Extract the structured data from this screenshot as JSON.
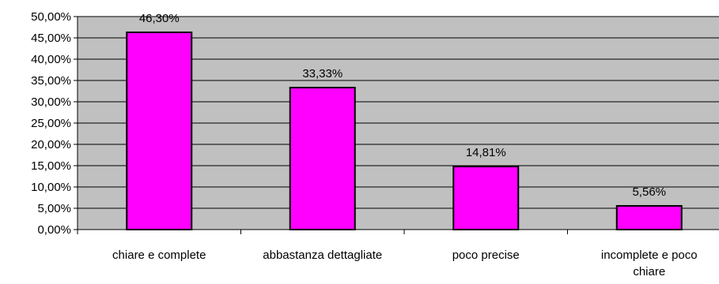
{
  "chart_data": {
    "type": "bar",
    "title": "",
    "xlabel": "",
    "ylabel": "",
    "categories": [
      [
        "chiare e complete"
      ],
      [
        "abbastanza dettagliate"
      ],
      [
        "poco precise"
      ],
      [
        "incomplete e poco",
        "chiare"
      ]
    ],
    "values": [
      46.3,
      33.33,
      14.81,
      5.56
    ],
    "data_labels": [
      "46,30%",
      "33,33%",
      "14,81%",
      "5,56%"
    ],
    "ylim": [
      0,
      50
    ],
    "yticks": [
      0,
      5,
      10,
      15,
      20,
      25,
      30,
      35,
      40,
      45,
      50
    ],
    "ytick_labels": [
      "0,00%",
      "5,00%",
      "10,00%",
      "15,00%",
      "20,00%",
      "25,00%",
      "30,00%",
      "35,00%",
      "40,00%",
      "45,00%",
      "50,00%"
    ],
    "grid": true,
    "legend": "none",
    "colors": {
      "bar_fill": "#ff00ff",
      "bar_stroke": "#000000",
      "plot_background": "#c0c0c0",
      "gridline": "#000000"
    }
  }
}
